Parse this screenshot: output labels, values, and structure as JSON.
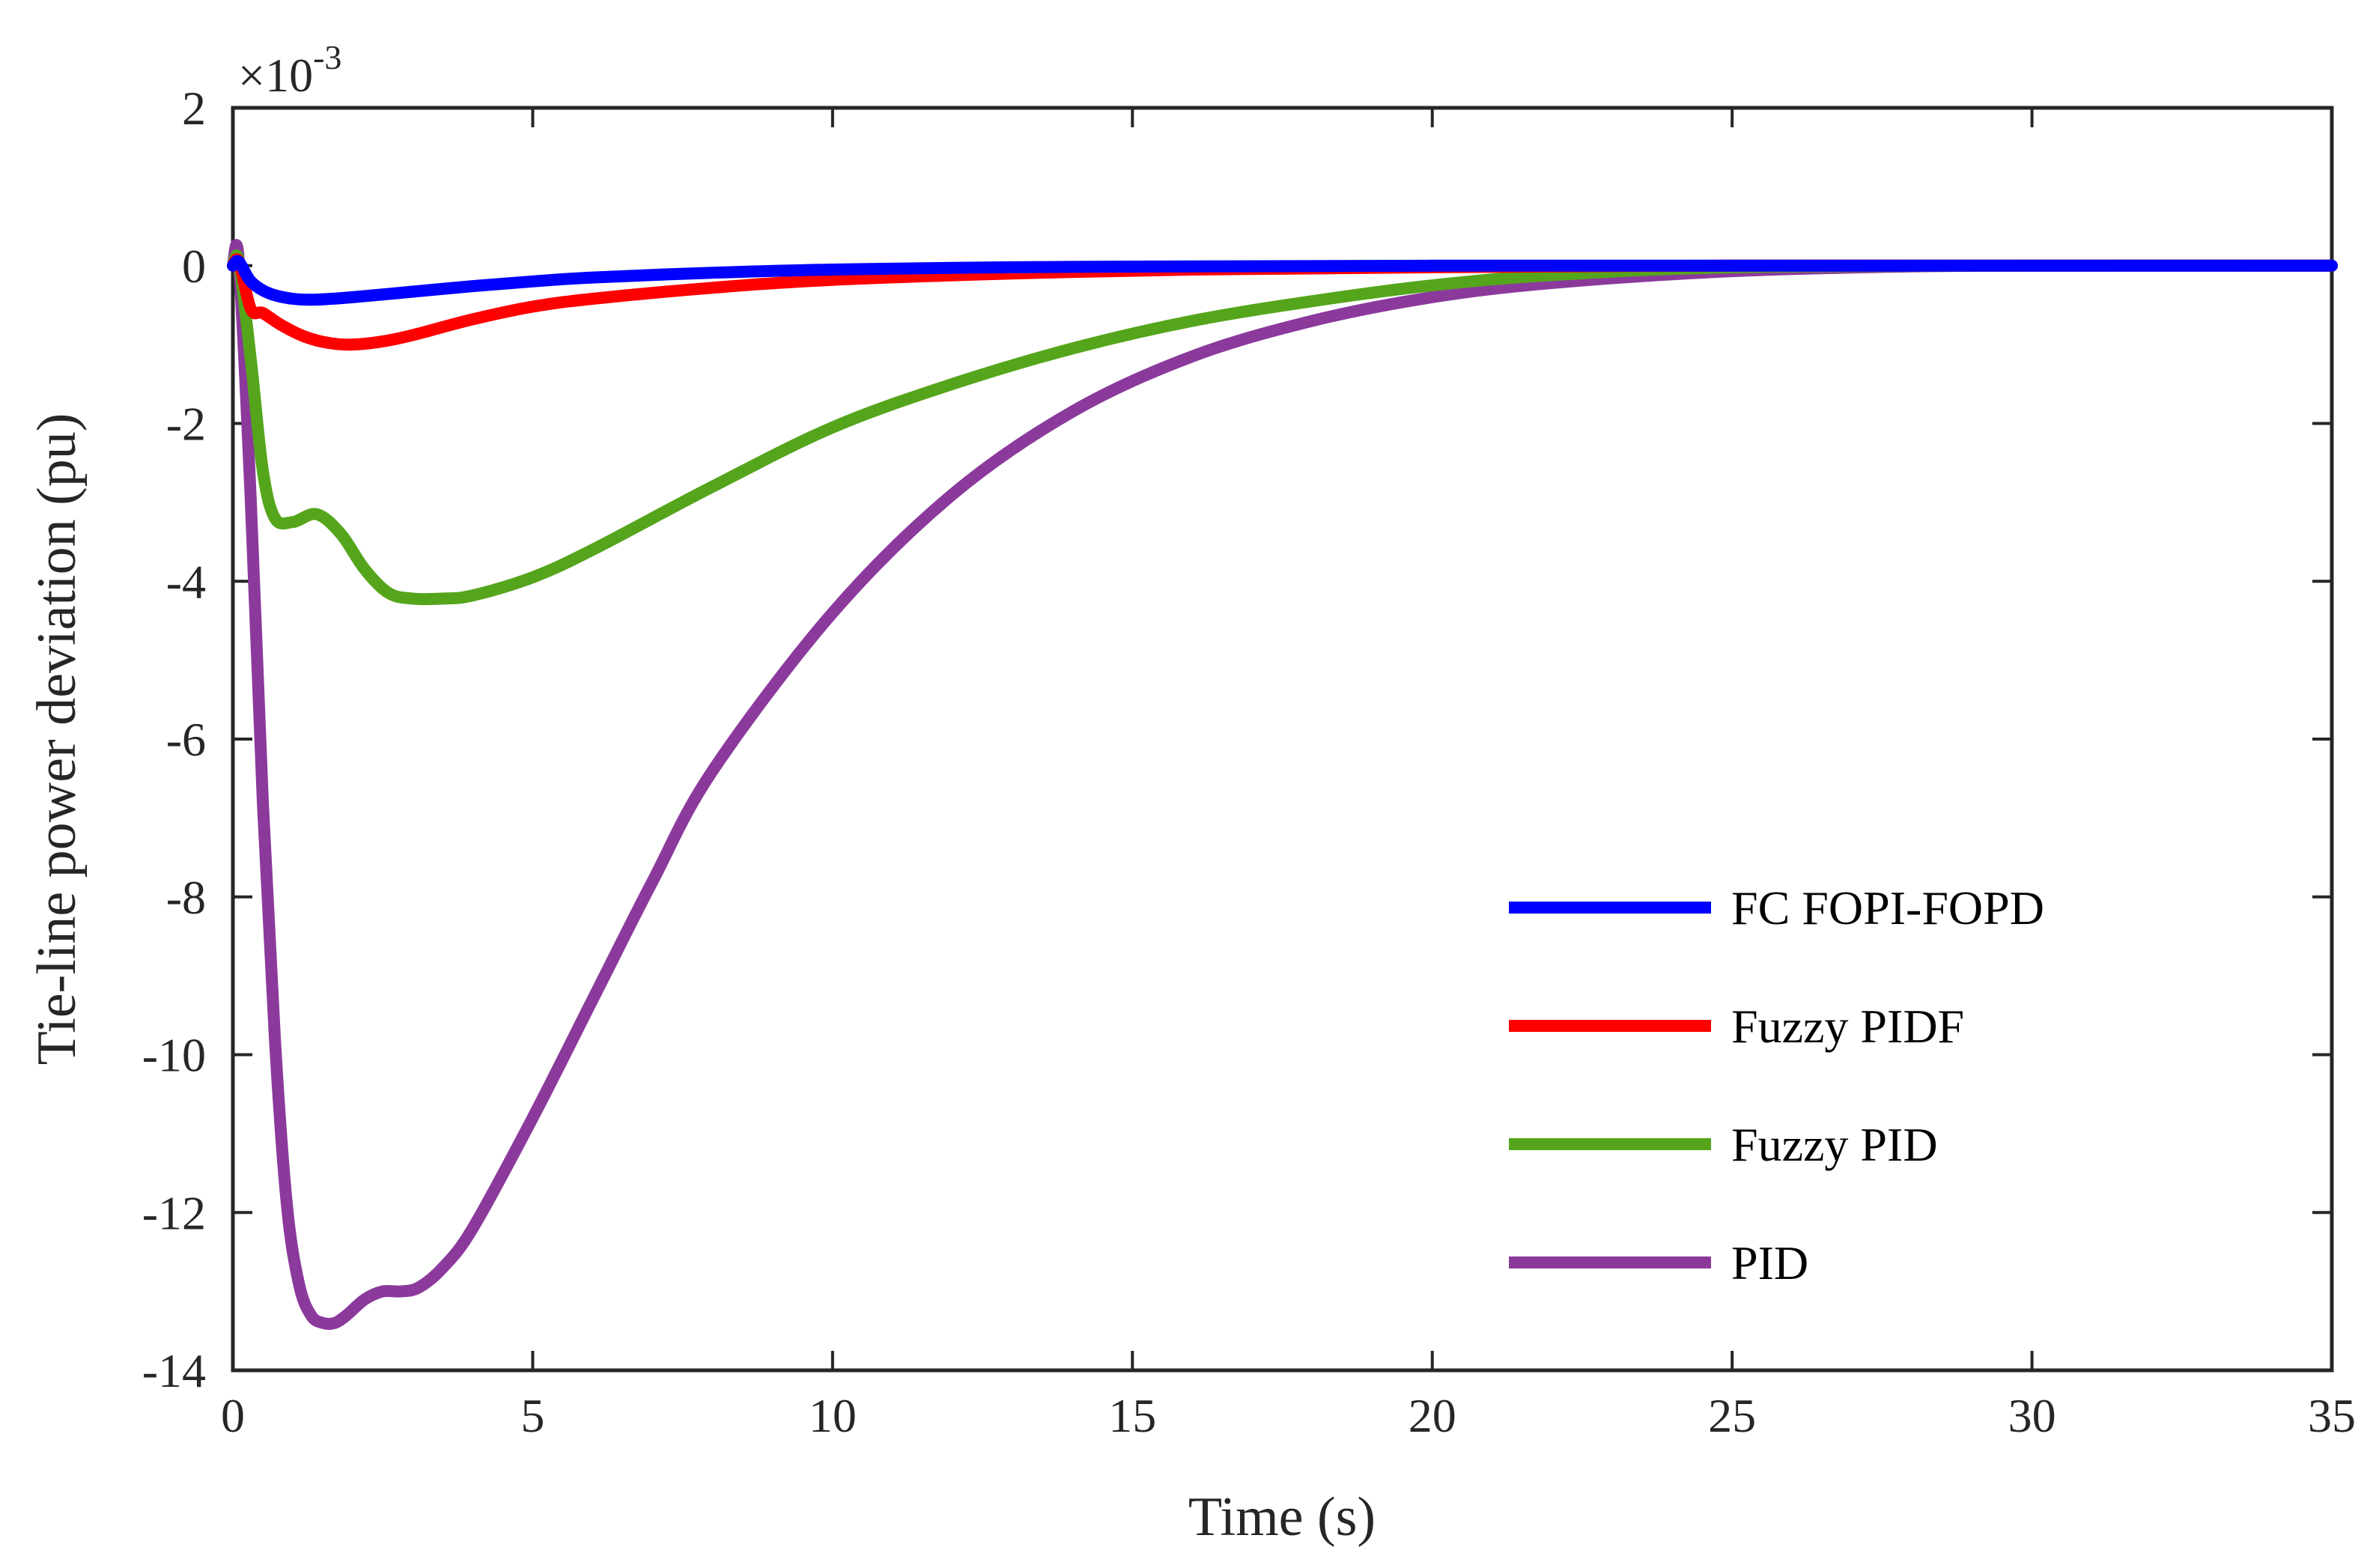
{
  "chart_data": {
    "type": "line",
    "title": "",
    "xlabel": "Time (s)",
    "ylabel": "Tie-line power deviation (pu)",
    "y_multiplier": {
      "base": "×10",
      "exponent": "-3"
    },
    "xlim": [
      0,
      35
    ],
    "ylim": [
      -14,
      2
    ],
    "x_ticks": [
      0,
      5,
      10,
      15,
      20,
      25,
      30,
      35
    ],
    "y_ticks": [
      2,
      0,
      -2,
      -4,
      -6,
      -8,
      -10,
      -12,
      -14
    ],
    "grid": false,
    "legend_position": "bottom-right",
    "series": [
      {
        "name": "FC FOPI-FOPD",
        "color": "#0000ff",
        "x": [
          0,
          0.1,
          0.3,
          0.6,
          1.0,
          1.4,
          2.0,
          3.0,
          4.0,
          5.0,
          6.0,
          8.0,
          10.0,
          13.0,
          16.0,
          20.0,
          25.0,
          30.0,
          35.0
        ],
        "y": [
          0,
          0.05,
          -0.2,
          -0.35,
          -0.42,
          -0.43,
          -0.4,
          -0.33,
          -0.26,
          -0.2,
          -0.15,
          -0.09,
          -0.05,
          -0.02,
          -0.01,
          0,
          0,
          0,
          0
        ]
      },
      {
        "name": "Fuzzy PIDF",
        "color": "#ff0000",
        "x": [
          0,
          0.1,
          0.3,
          0.5,
          0.8,
          1.2,
          1.6,
          2.0,
          2.5,
          3.0,
          4.0,
          5.0,
          6.0,
          8.0,
          10.0,
          13.0,
          16.0,
          20.0,
          25.0,
          30.0,
          35.0
        ],
        "y": [
          0,
          0.05,
          -0.55,
          -0.6,
          -0.75,
          -0.9,
          -0.98,
          -1.0,
          -0.96,
          -0.88,
          -0.68,
          -0.52,
          -0.42,
          -0.28,
          -0.18,
          -0.1,
          -0.05,
          -0.02,
          0,
          0,
          0
        ]
      },
      {
        "name": "Fuzzy PID",
        "color": "#55a51c",
        "x": [
          0,
          0.1,
          0.3,
          0.5,
          0.7,
          1.0,
          1.4,
          1.8,
          2.2,
          2.6,
          3.0,
          3.5,
          4.0,
          5.0,
          6.0,
          8.0,
          10.0,
          12.0,
          14.0,
          16.0,
          18.0,
          20.0,
          22.0,
          25.0,
          30.0,
          35.0
        ],
        "y": [
          0,
          0.05,
          -1.2,
          -2.6,
          -3.2,
          -3.25,
          -3.15,
          -3.4,
          -3.85,
          -4.15,
          -4.22,
          -4.22,
          -4.18,
          -3.95,
          -3.6,
          -2.8,
          -2.05,
          -1.5,
          -1.05,
          -0.7,
          -0.45,
          -0.25,
          -0.12,
          -0.02,
          0,
          0
        ]
      },
      {
        "name": "PID",
        "color": "#8b3a9c",
        "x": [
          0,
          0.1,
          0.3,
          0.5,
          0.7,
          0.9,
          1.1,
          1.3,
          1.5,
          1.7,
          1.9,
          2.2,
          2.5,
          2.8,
          3.1,
          3.5,
          4.0,
          5.0,
          6.0,
          7.0,
          8.0,
          10.0,
          12.0,
          14.0,
          16.0,
          18.0,
          20.0,
          22.0,
          25.0,
          28.0,
          30.0,
          35.0
        ],
        "y": [
          0,
          0.05,
          -3.0,
          -6.8,
          -9.8,
          -11.9,
          -12.9,
          -13.3,
          -13.4,
          -13.4,
          -13.3,
          -13.1,
          -13.0,
          -13.0,
          -12.95,
          -12.7,
          -12.2,
          -10.8,
          -9.3,
          -7.8,
          -6.4,
          -4.4,
          -2.9,
          -1.85,
          -1.15,
          -0.7,
          -0.4,
          -0.22,
          -0.07,
          -0.01,
          0,
          0
        ]
      }
    ]
  }
}
